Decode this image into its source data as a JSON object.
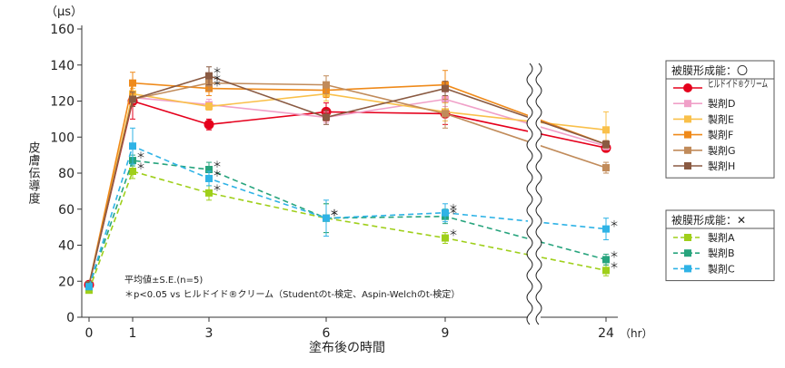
{
  "chart_data": {
    "type": "line",
    "title": "",
    "ylabel": "皮膚伝導度",
    "yunit": "（μs）",
    "xlabel": "塗布後の時間",
    "xunit": "（hr）",
    "ylim": [
      0,
      160
    ],
    "yticks": [
      0,
      20,
      40,
      60,
      80,
      100,
      120,
      140,
      160
    ],
    "x": [
      0,
      1,
      3,
      6,
      9,
      24
    ],
    "xticks": [
      "0",
      "1",
      "3",
      "6",
      "9",
      "24"
    ],
    "axis_break": "between 9 and 24",
    "grid": false,
    "note_lines": [
      "平均値±S.E.(n=5)",
      "＊p<0.05 vs ヒルドイド®クリーム（Studentのt-検定、Aspin-Welchのt-検定）"
    ],
    "legend_groups": [
      {
        "title": "被膜形成能：〇",
        "series": [
          "ヒルドイド®クリーム",
          "製剤D",
          "製剤E",
          "製剤F",
          "製剤G",
          "製剤H"
        ]
      },
      {
        "title": "被膜形成能：✕",
        "series": [
          "製剤A",
          "製剤B",
          "製剤C"
        ]
      }
    ],
    "series": [
      {
        "name": "ヒルドイド®クリーム",
        "color": "#e5001c",
        "dash": false,
        "marker": "circle",
        "values": [
          18,
          120,
          107,
          114,
          113,
          94
        ],
        "err": [
          0,
          10,
          3,
          5,
          6,
          2
        ]
      },
      {
        "name": "製剤D",
        "color": "#f0a0c8",
        "dash": false,
        "marker": "square",
        "values": [
          18,
          122,
          118,
          111,
          121,
          95
        ],
        "err": [
          0,
          3,
          3,
          3,
          4,
          2
        ]
      },
      {
        "name": "製剤E",
        "color": "#f9c04a",
        "dash": false,
        "marker": "square",
        "values": [
          18,
          124,
          117,
          124,
          114,
          104
        ],
        "err": [
          0,
          3,
          2,
          4,
          5,
          10
        ]
      },
      {
        "name": "製剤F",
        "color": "#ef8a1a",
        "dash": false,
        "marker": "square",
        "values": [
          18,
          130,
          127,
          126,
          129,
          96
        ],
        "err": [
          0,
          6,
          4,
          4,
          8,
          2
        ]
      },
      {
        "name": "製剤G",
        "color": "#c18b5a",
        "dash": false,
        "marker": "square",
        "values": [
          18,
          121,
          130,
          129,
          113,
          83
        ],
        "err": [
          0,
          4,
          4,
          5,
          8,
          3
        ]
      },
      {
        "name": "製剤H",
        "color": "#8a5a42",
        "dash": false,
        "marker": "square",
        "values": [
          18,
          121,
          134,
          111,
          127,
          96
        ],
        "err": [
          0,
          4,
          5,
          4,
          4,
          2
        ]
      },
      {
        "name": "製剤A",
        "color": "#9fcf1a",
        "dash": true,
        "marker": "square",
        "values": [
          15,
          81,
          69,
          55,
          44,
          26
        ],
        "err": [
          0,
          4,
          4,
          8,
          3,
          3
        ]
      },
      {
        "name": "製剤B",
        "color": "#27a47d",
        "dash": true,
        "marker": "square",
        "values": [
          17,
          87,
          82,
          55,
          56,
          32
        ],
        "err": [
          0,
          3,
          4,
          8,
          4,
          3
        ]
      },
      {
        "name": "製剤C",
        "color": "#2fb3e6",
        "dash": true,
        "marker": "square",
        "values": [
          17,
          95,
          77,
          55,
          58,
          49
        ],
        "err": [
          0,
          10,
          4,
          10,
          5,
          6
        ]
      }
    ],
    "significance": [
      {
        "series": "製剤H",
        "x": 3,
        "mark": "＊"
      },
      {
        "series": "製剤F",
        "x": 3,
        "mark": "＊"
      },
      {
        "series": "製剤G",
        "x": 3,
        "mark": "＊"
      },
      {
        "series": "製剤B",
        "x": 1,
        "mark": "＊"
      },
      {
        "series": "製剤A",
        "x": 1,
        "mark": "＊"
      },
      {
        "series": "製剤B",
        "x": 3,
        "mark": "＊"
      },
      {
        "series": "製剤C",
        "x": 3,
        "mark": "＊"
      },
      {
        "series": "製剤A",
        "x": 3,
        "mark": "＊"
      },
      {
        "series": "製剤C",
        "x": 6,
        "mark": "＊"
      },
      {
        "series": "製剤B",
        "x": 6,
        "mark": "＊"
      },
      {
        "series": "製剤A",
        "x": 6,
        "mark": "＊"
      },
      {
        "series": "製剤C",
        "x": 9,
        "mark": "＊"
      },
      {
        "series": "製剤B",
        "x": 9,
        "mark": "＊"
      },
      {
        "series": "製剤A",
        "x": 9,
        "mark": "＊"
      },
      {
        "series": "製剤C",
        "x": 24,
        "mark": "＊"
      },
      {
        "series": "製剤B",
        "x": 24,
        "mark": "＊"
      },
      {
        "series": "製剤A",
        "x": 24,
        "mark": "＊"
      }
    ]
  }
}
